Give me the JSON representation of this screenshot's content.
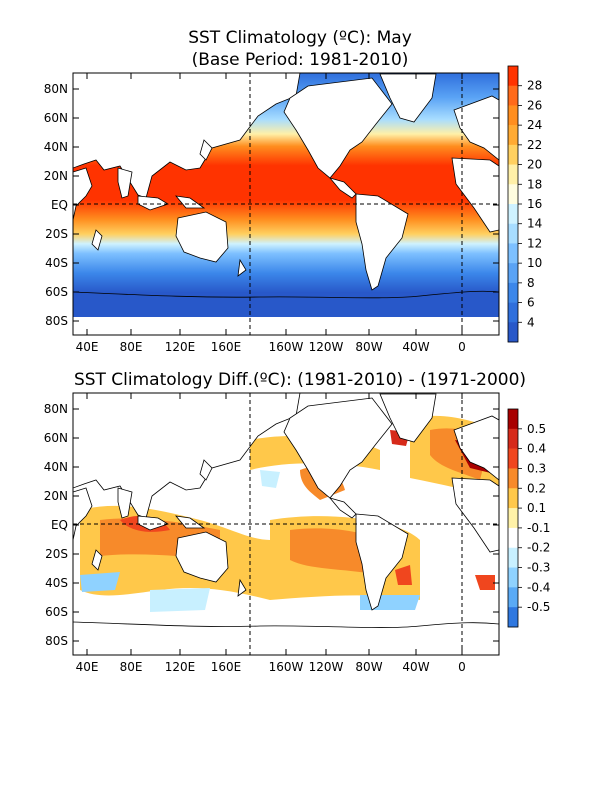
{
  "panel1": {
    "title": "SST Climatology (ºC): May",
    "subtitle": "(Base Period: 1981-2010)",
    "lat_labels": [
      "80N",
      "60N",
      "40N",
      "20N",
      "EQ",
      "20S",
      "40S",
      "60S",
      "80S"
    ],
    "lon_labels": [
      "40E",
      "80E",
      "120E",
      "160E",
      "160W",
      "120W",
      "80W",
      "40W",
      "0"
    ],
    "colorbar": {
      "labels": [
        "28",
        "26",
        "24",
        "22",
        "20",
        "18",
        "16",
        "14",
        "12",
        "10",
        "8",
        "6",
        "4"
      ],
      "colors": [
        "#ff3300",
        "#ff6a1a",
        "#ff8e1f",
        "#ffaa33",
        "#ffd060",
        "#fff0a8",
        "#fffde0",
        "#cff2ff",
        "#a8ddff",
        "#7dc0ff",
        "#5aa3f5",
        "#3c87ea",
        "#2f6fdc",
        "#2858c9"
      ]
    }
  },
  "panel2": {
    "title": "SST Climatology Diff.(ºC): (1981-2010) - (1971-2000)",
    "lat_labels": [
      "80N",
      "60N",
      "40N",
      "20N",
      "EQ",
      "20S",
      "40S",
      "60S",
      "80S"
    ],
    "lon_labels": [
      "40E",
      "80E",
      "120E",
      "160E",
      "160W",
      "120W",
      "80W",
      "40W",
      "0"
    ],
    "colorbar": {
      "labels": [
        "0.5",
        "0.4",
        "0.3",
        "0.2",
        "0.1",
        "-0.1",
        "-0.2",
        "-0.3",
        "-0.4",
        "-0.5"
      ],
      "colors": [
        "#a80000",
        "#d62a1a",
        "#f0461e",
        "#f78a2a",
        "#ffc84a",
        "#fff2a8",
        "#ffffff",
        "#c8f0ff",
        "#8fd2ff",
        "#5aaaf5",
        "#2f78e0"
      ]
    }
  }
}
